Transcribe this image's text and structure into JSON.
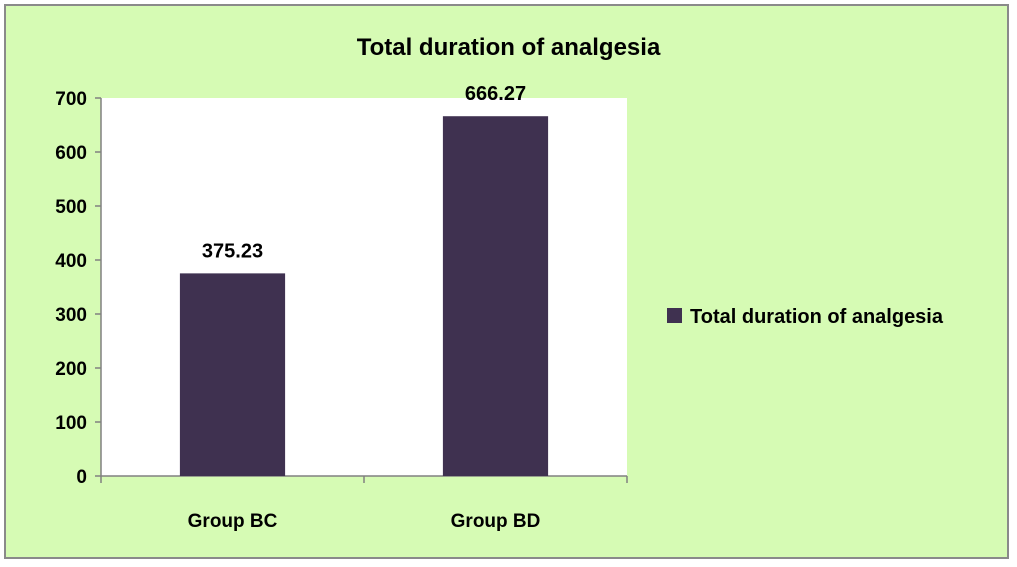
{
  "chart_data": {
    "type": "bar",
    "title": "Total duration of analgesia",
    "categories": [
      "Group BC",
      "Group BD"
    ],
    "series": [
      {
        "name": "Total duration of analgesia",
        "values": [
          375.23,
          666.27
        ]
      }
    ],
    "data_labels": [
      "375.23",
      "666.27"
    ],
    "y_ticks": [
      "0",
      "100",
      "200",
      "300",
      "400",
      "500",
      "600",
      "700"
    ],
    "ylim": [
      0,
      700
    ],
    "xlabel": "",
    "ylabel": "",
    "legend_position": "right",
    "grid": false,
    "colors": {
      "bar": "#3f3150",
      "plot_background": "#ffffff",
      "chart_background": "#d6fbb4"
    }
  }
}
